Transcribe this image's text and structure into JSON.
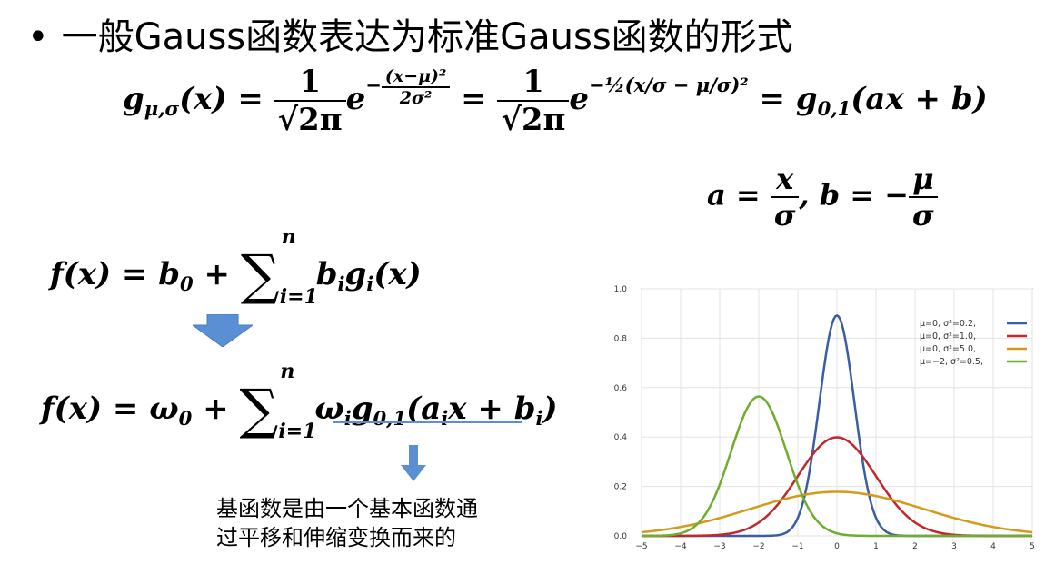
{
  "title": {
    "bullet": "•",
    "text": "一般Gauss函数表达为标准Gauss函数的形式"
  },
  "formula1": {
    "lhs": "g",
    "lhs_sub": "μ,σ",
    "lhs_arg": "(x) =",
    "frac_num": "1",
    "frac_den": "√2π",
    "exp1_base": "e",
    "exp1_sign": "−",
    "exp1_num": "(x−μ)²",
    "exp1_den": "2σ²",
    "eq2": "=",
    "frac2_num": "1",
    "frac2_den": "√2π",
    "exp2_base": "e",
    "exp2_text": "−½(x/σ − μ/σ)²",
    "rhs": "= g",
    "rhs_sub": "0,1",
    "rhs_arg": "(ax + b)"
  },
  "formula2": {
    "a_lhs": "a =",
    "a_num": "x",
    "a_den": "σ",
    "b_lhs": ", b = −",
    "b_num": "μ",
    "b_den": "σ"
  },
  "formula3": {
    "lhs": "f(x) = b",
    "lhs_sub": "0",
    "plus": "+",
    "sum_sym": "∑",
    "sum_top": "n",
    "sum_bot": "i=1",
    "term": "b",
    "term_sub": "i",
    "term2": "g",
    "term2_sub": "i",
    "term2_arg": "(x)"
  },
  "formula4": {
    "lhs": "f(x) = ω",
    "lhs_sub": "0",
    "plus": "+",
    "sum_sym": "∑",
    "sum_top": "n",
    "sum_bot": "i=1",
    "term": "ω",
    "term_sub": "i",
    "term2": "g",
    "term2_sub": "0,1",
    "term2_arg_a": "(a",
    "term2_arg_a_sub": "i",
    "term2_arg_b": "x + b",
    "term2_arg_b_sub": "i",
    "term2_close": ")"
  },
  "note": {
    "line1": "基函数是由一个基本函数通",
    "line2": "过平移和伸缩变换而来的"
  },
  "colors": {
    "arrow": "#5b8fd4",
    "underline": "#5b8fd4"
  },
  "chart_data": {
    "type": "line",
    "xlim": [
      -5,
      5
    ],
    "ylim": [
      0,
      1.0
    ],
    "xticks": [
      "−5",
      "−4",
      "−3",
      "−2",
      "−1",
      "0",
      "1",
      "2",
      "3",
      "4",
      "5"
    ],
    "yticks": [
      "0.0",
      "0.2",
      "0.4",
      "0.6",
      "0.8",
      "1.0"
    ],
    "grid": true,
    "legend_position": "top-right",
    "series": [
      {
        "name": "μ=0,   σ²=0.2,",
        "mu": 0,
        "var": 0.2,
        "color": "#3a5ea3",
        "x": [
          -5,
          -1,
          -0.5,
          0,
          0.5,
          1,
          5
        ],
        "y": [
          0,
          0.05,
          0.48,
          0.89,
          0.48,
          0.05,
          0
        ]
      },
      {
        "name": "μ=0,   σ²=1.0,",
        "mu": 0,
        "var": 1.0,
        "color": "#c0282d",
        "x": [
          -5,
          -2,
          -1,
          0,
          1,
          2,
          5
        ],
        "y": [
          0,
          0.05,
          0.24,
          0.4,
          0.24,
          0.05,
          0
        ]
      },
      {
        "name": "μ=0,   σ²=5.0,",
        "mu": 0,
        "var": 5.0,
        "color": "#d49a1a",
        "x": [
          -5,
          -3,
          -1,
          0,
          1,
          3,
          5
        ],
        "y": [
          0.01,
          0.07,
          0.16,
          0.18,
          0.16,
          0.07,
          0.01
        ]
      },
      {
        "name": "μ=−2,  σ²=0.5,",
        "mu": -2,
        "var": 0.5,
        "color": "#6fad2f",
        "x": [
          -5,
          -3,
          -2.5,
          -2,
          -1.5,
          -1,
          0,
          5
        ],
        "y": [
          0,
          0.21,
          0.44,
          0.56,
          0.44,
          0.21,
          0.01,
          0
        ]
      }
    ]
  }
}
